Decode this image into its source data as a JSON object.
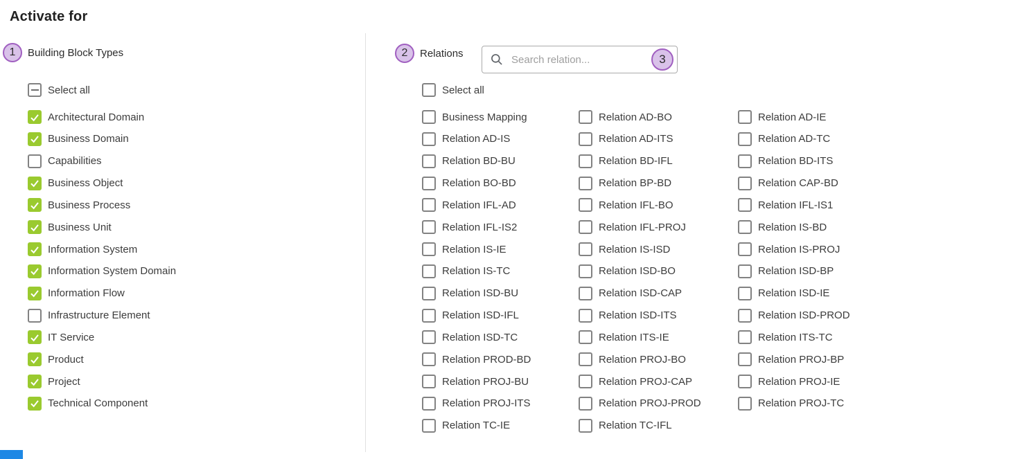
{
  "title": "Activate for",
  "colors": {
    "checkbox_checked": "#9aca2f",
    "badge_fill": "#d9c2e9",
    "badge_border": "#a05fc0",
    "divider": "#e0e0e0",
    "clipped_blue": "#1e88e5"
  },
  "left_panel": {
    "step_number": "1",
    "title": "Building Block Types",
    "select_all_label": "Select all",
    "select_all_state": "indeterminate",
    "items": [
      {
        "label": "Architectural Domain",
        "checked": true
      },
      {
        "label": "Business Domain",
        "checked": true
      },
      {
        "label": "Capabilities",
        "checked": false
      },
      {
        "label": "Business Object",
        "checked": true
      },
      {
        "label": "Business Process",
        "checked": true
      },
      {
        "label": "Business Unit",
        "checked": true
      },
      {
        "label": "Information System",
        "checked": true
      },
      {
        "label": "Information System Domain",
        "checked": true
      },
      {
        "label": "Information Flow",
        "checked": true
      },
      {
        "label": "Infrastructure Element",
        "checked": false
      },
      {
        "label": "IT Service",
        "checked": true
      },
      {
        "label": "Product",
        "checked": true
      },
      {
        "label": "Project",
        "checked": true
      },
      {
        "label": "Technical Component",
        "checked": true
      }
    ]
  },
  "right_panel": {
    "step_number": "2",
    "title": "Relations",
    "search_placeholder": "Search relation...",
    "search_step_number": "3",
    "select_all_label": "Select all",
    "select_all_state": "unchecked",
    "items": [
      "Business Mapping",
      "Relation AD-BO",
      "Relation AD-IE",
      "Relation AD-IS",
      "Relation AD-ITS",
      "Relation AD-TC",
      "Relation BD-BU",
      "Relation BD-IFL",
      "Relation BD-ITS",
      "Relation BO-BD",
      "Relation BP-BD",
      "Relation CAP-BD",
      "Relation IFL-AD",
      "Relation IFL-BO",
      "Relation IFL-IS1",
      "Relation IFL-IS2",
      "Relation IFL-PROJ",
      "Relation IS-BD",
      "Relation IS-IE",
      "Relation IS-ISD",
      "Relation IS-PROJ",
      "Relation IS-TC",
      "Relation ISD-BO",
      "Relation ISD-BP",
      "Relation ISD-BU",
      "Relation ISD-CAP",
      "Relation ISD-IE",
      "Relation ISD-IFL",
      "Relation ISD-ITS",
      "Relation ISD-PROD",
      "Relation ISD-TC",
      "Relation ITS-IE",
      "Relation ITS-TC",
      "Relation PROD-BD",
      "Relation PROJ-BO",
      "Relation PROJ-BP",
      "Relation PROJ-BU",
      "Relation PROJ-CAP",
      "Relation PROJ-IE",
      "Relation PROJ-ITS",
      "Relation PROJ-PROD",
      "Relation PROJ-TC",
      "Relation TC-IE",
      "Relation TC-IFL"
    ]
  }
}
